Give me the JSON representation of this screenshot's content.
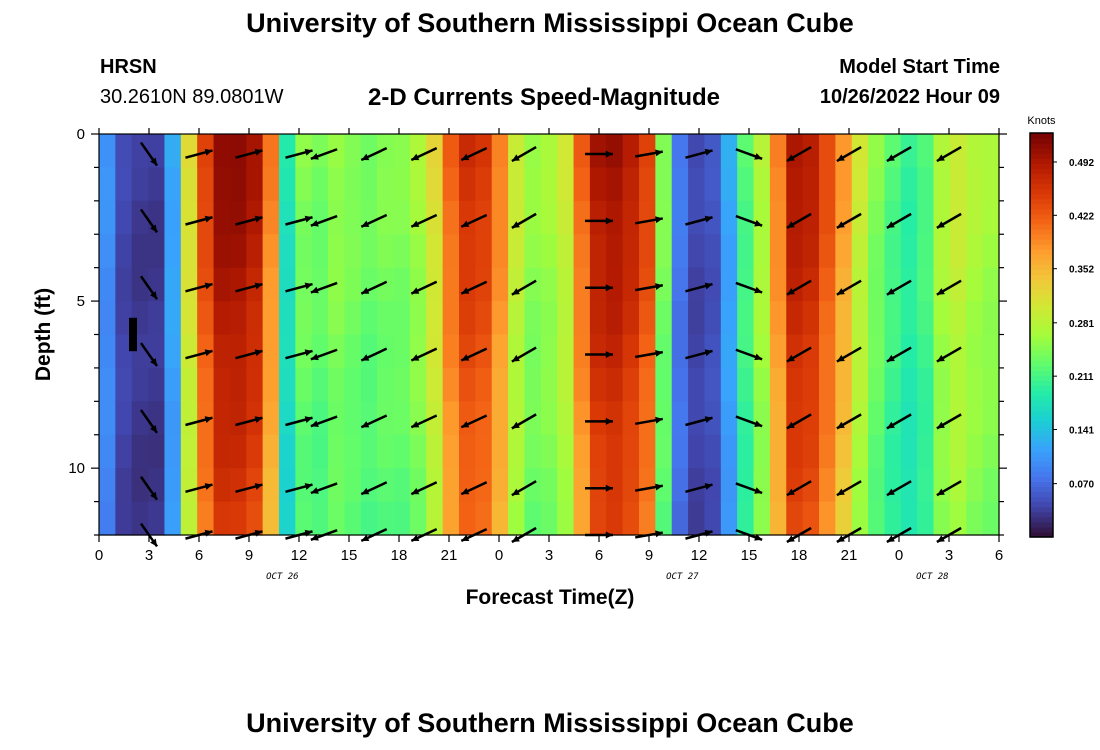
{
  "header": {
    "title": "University of Southern Mississippi Ocean Cube",
    "station": "HRSN",
    "coords": "30.2610N  89.0801W",
    "plot_title": "2-D Currents Speed-Magnitude",
    "start_label": "Model Start Time",
    "start_value": "10/26/2022 Hour 09"
  },
  "footer": {
    "title": "University of Southern Mississippi Ocean Cube"
  },
  "chart_data": {
    "type": "heatmap",
    "title": "2-D Currents Speed-Magnitude",
    "xlabel": "Forecast Time(Z)",
    "ylabel": "Depth (ft)",
    "x_range_hours": [
      0,
      54
    ],
    "y_range_ft": [
      0,
      12
    ],
    "x_ticks": [
      "0",
      "3",
      "6",
      "9",
      "12",
      "15",
      "18",
      "21",
      "0",
      "3",
      "6",
      "9",
      "12",
      "15",
      "18",
      "21",
      "0",
      "3",
      "6"
    ],
    "y_ticks": [
      0,
      5,
      10
    ],
    "date_labels": [
      {
        "text": "OCT 26",
        "hour": 11
      },
      {
        "text": "OCT 27",
        "hour": 35
      },
      {
        "text": "OCT 28",
        "hour": 50
      }
    ],
    "colorbar": {
      "label": "Knots",
      "min": 0.0,
      "max": 0.53,
      "ticks": [
        "0.492",
        "0.422",
        "0.352",
        "0.281",
        "0.211",
        "0.141",
        "0.070"
      ],
      "colors": [
        "#30123b",
        "#4145ab",
        "#4675ed",
        "#39a2fc",
        "#1bcfd4",
        "#24eca6",
        "#61fc6c",
        "#a4fc3b",
        "#d1e834",
        "#f3c63a",
        "#fe9b2d",
        "#f36315",
        "#d93806",
        "#b11901",
        "#7a0402"
      ]
    },
    "speed_profile_knots": [
      0.1,
      0.04,
      0.03,
      0.03,
      0.12,
      0.32,
      0.45,
      0.52,
      0.52,
      0.5,
      0.4,
      0.18,
      0.25,
      0.24,
      0.26,
      0.25,
      0.24,
      0.25,
      0.25,
      0.27,
      0.32,
      0.42,
      0.47,
      0.46,
      0.4,
      0.3,
      0.26,
      0.27,
      0.3,
      0.42,
      0.5,
      0.51,
      0.49,
      0.45,
      0.25,
      0.08,
      0.04,
      0.05,
      0.12,
      0.22,
      0.28,
      0.4,
      0.5,
      0.49,
      0.44,
      0.38,
      0.3,
      0.25,
      0.22,
      0.2,
      0.22,
      0.28,
      0.3,
      0.28,
      0.27
    ],
    "vector_depths_ft": [
      0.6,
      2.6,
      4.6,
      6.6,
      8.6,
      10.6,
      12.0
    ],
    "vector_columns": [
      {
        "hour": 3.0,
        "angle_deg": -55
      },
      {
        "hour": 6.0,
        "angle_deg": 15
      },
      {
        "hour": 9.0,
        "angle_deg": 15
      },
      {
        "hour": 12.0,
        "angle_deg": 15
      },
      {
        "hour": 13.5,
        "angle_deg": 200
      },
      {
        "hour": 16.5,
        "angle_deg": 205
      },
      {
        "hour": 19.5,
        "angle_deg": 205
      },
      {
        "hour": 22.5,
        "angle_deg": 205
      },
      {
        "hour": 25.5,
        "angle_deg": 210
      },
      {
        "hour": 30.0,
        "angle_deg": 0
      },
      {
        "hour": 33.0,
        "angle_deg": 10
      },
      {
        "hour": 36.0,
        "angle_deg": 15
      },
      {
        "hour": 39.0,
        "angle_deg": -20
      },
      {
        "hour": 42.0,
        "angle_deg": 210
      },
      {
        "hour": 45.0,
        "angle_deg": 210
      },
      {
        "hour": 48.0,
        "angle_deg": 210
      },
      {
        "hour": 51.0,
        "angle_deg": 210
      }
    ]
  }
}
